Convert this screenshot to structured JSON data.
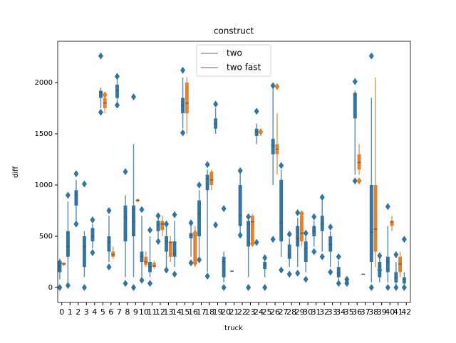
{
  "chart_data": {
    "type": "boxen",
    "title": "construct",
    "x_label": "truck",
    "y_label": "diff",
    "categories": [
      "0",
      "1",
      "2",
      "3",
      "4",
      "5",
      "6",
      "7",
      "8",
      "9",
      "10",
      "11",
      "12",
      "13",
      "14",
      "15",
      "16",
      "17",
      "18",
      "19",
      "20",
      "21",
      "22",
      "23",
      "24",
      "25",
      "26",
      "27",
      "28",
      "29",
      "30",
      "31",
      "32",
      "33",
      "34",
      "35",
      "36",
      "37",
      "38",
      "39",
      "40",
      "41",
      "42"
    ],
    "ylim": [
      -146,
      2403
    ],
    "yticks": [
      0,
      500,
      1000,
      1500,
      2000
    ],
    "legend": "upper center",
    "series": [
      {
        "name": "two",
        "color": "#3274a1",
        "values": [
          {
            "low": 80,
            "q1": 150,
            "median": 210,
            "q3": 260,
            "high": 280,
            "outliers": [
              0,
              240
            ]
          },
          {
            "low": 50,
            "q1": 300,
            "median": 400,
            "q3": 550,
            "high": 840,
            "outliers": [
              900,
              20
            ]
          },
          {
            "low": 650,
            "q1": 800,
            "median": 900,
            "q3": 950,
            "high": 1050,
            "outliers": [
              1110,
              620
            ]
          },
          {
            "low": 100,
            "q1": 200,
            "median": 400,
            "q3": 500,
            "high": 550,
            "outliers": [
              1010,
              0
            ]
          },
          {
            "low": 380,
            "q1": 450,
            "median": 500,
            "q3": 580,
            "high": 620,
            "outliers": [
              660,
              340
            ]
          },
          {
            "low": 1750,
            "q1": 1850,
            "median": 1900,
            "q3": 1920,
            "high": 1950,
            "outliers": [
              2260,
              1710
            ]
          },
          {
            "low": 250,
            "q1": 350,
            "median": 440,
            "q3": 500,
            "high": 700,
            "outliers": [
              750,
              200
            ]
          },
          {
            "low": 1800,
            "q1": 1850,
            "median": 1920,
            "q3": 1980,
            "high": 2050,
            "outliers": [
              2060,
              1780
            ]
          },
          {
            "low": 100,
            "q1": 450,
            "median": 680,
            "q3": 800,
            "high": 900,
            "outliers": [
              1130,
              40
            ]
          },
          {
            "low": 100,
            "q1": 500,
            "median": 640,
            "q3": 800,
            "high": 1400,
            "outliers": [
              1860,
              0
            ]
          },
          {
            "low": 100,
            "q1": 250,
            "median": 300,
            "q3": 350,
            "high": 700,
            "outliers": [
              760,
              70
            ]
          },
          {
            "low": 100,
            "q1": 150,
            "median": 200,
            "q3": 250,
            "high": 500,
            "outliers": [
              560,
              40
            ]
          },
          {
            "low": 480,
            "q1": 550,
            "median": 610,
            "q3": 650,
            "high": 700,
            "outliers": [
              700,
              450
            ]
          },
          {
            "low": 200,
            "q1": 350,
            "median": 450,
            "q3": 500,
            "high": 600,
            "outliers": [
              620,
              170
            ]
          },
          {
            "low": 200,
            "q1": 300,
            "median": 330,
            "q3": 450,
            "high": 650,
            "outliers": [
              710,
              130
            ]
          },
          {
            "low": 1550,
            "q1": 1700,
            "median": 1780,
            "q3": 1850,
            "high": 2050,
            "outliers": [
              2120,
              1510
            ]
          },
          {
            "low": 300,
            "q1": 480,
            "median": 510,
            "q3": 530,
            "high": 600,
            "outliers": [
              630,
              240
            ]
          },
          {
            "low": 300,
            "q1": 500,
            "median": 720,
            "q3": 850,
            "high": 950,
            "outliers": [
              1000,
              270
            ]
          },
          {
            "low": 150,
            "q1": 950,
            "median": 1060,
            "q3": 1100,
            "high": 1150,
            "outliers": [
              1200,
              110
            ]
          },
          {
            "low": 1500,
            "q1": 1550,
            "median": 1600,
            "q3": 1650,
            "high": 1750,
            "outliers": [
              1790,
              610
            ]
          },
          {
            "low": 50,
            "q1": 100,
            "median": 250,
            "q3": 300,
            "high": 350,
            "outliers": [
              770,
              0
            ]
          },
          {
            "low": 160,
            "q1": 160,
            "median": 160,
            "q3": 160,
            "high": 160,
            "outliers": []
          },
          {
            "low": 500,
            "q1": 600,
            "median": 700,
            "q3": 1000,
            "high": 1150,
            "outliers": [
              1140,
              510
            ]
          },
          {
            "low": 100,
            "q1": 400,
            "median": 620,
            "q3": 650,
            "high": 700,
            "outliers": [
              690,
              0
            ]
          },
          {
            "low": 1400,
            "q1": 1480,
            "median": 1520,
            "q3": 1550,
            "high": 1600,
            "outliers": [
              1720,
              440
            ]
          },
          {
            "low": 100,
            "q1": 180,
            "median": 220,
            "q3": 250,
            "high": 280,
            "outliers": [
              290,
              0
            ]
          },
          {
            "low": 1000,
            "q1": 1300,
            "median": 1380,
            "q3": 1450,
            "high": 1950,
            "outliers": [
              1970,
              470
            ]
          },
          {
            "low": 300,
            "q1": 450,
            "median": 630,
            "q3": 1050,
            "high": 1150,
            "outliers": [
              1190,
              170
            ]
          },
          {
            "low": 200,
            "q1": 280,
            "median": 320,
            "q3": 420,
            "high": 480,
            "outliers": [
              520,
              130
            ]
          },
          {
            "low": 200,
            "q1": 400,
            "median": 480,
            "q3": 600,
            "high": 680,
            "outliers": [
              730,
              140
            ]
          },
          {
            "low": 150,
            "q1": 250,
            "median": 380,
            "q3": 450,
            "high": 500,
            "outliers": [
              530,
              80
            ]
          },
          {
            "low": 400,
            "q1": 500,
            "median": 550,
            "q3": 600,
            "high": 650,
            "outliers": [
              690,
              350
            ]
          },
          {
            "low": 350,
            "q1": 550,
            "median": 620,
            "q3": 700,
            "high": 850,
            "outliers": [
              880,
              300
            ]
          },
          {
            "low": 200,
            "q1": 350,
            "median": 420,
            "q3": 500,
            "high": 550,
            "outliers": [
              590,
              150
            ]
          },
          {
            "low": 60,
            "q1": 100,
            "median": 140,
            "q3": 200,
            "high": 260,
            "outliers": [
              300,
              40
            ]
          },
          {
            "low": 20,
            "q1": 40,
            "median": 60,
            "q3": 80,
            "high": 100,
            "outliers": [
              80,
              40
            ]
          },
          {
            "low": 1100,
            "q1": 1650,
            "median": 1880,
            "q3": 1900,
            "high": 1920,
            "outliers": [
              2010,
              1040
            ]
          },
          {
            "low": 130,
            "q1": 130,
            "median": 130,
            "q3": 130,
            "high": 130,
            "outliers": []
          },
          {
            "low": 50,
            "q1": 250,
            "median": 540,
            "q3": 1000,
            "high": 1850,
            "outliers": [
              2260,
              0
            ]
          },
          {
            "low": 50,
            "q1": 100,
            "median": 200,
            "q3": 250,
            "high": 300,
            "outliers": [
              310,
              170
            ]
          },
          {
            "low": 50,
            "q1": 150,
            "median": 250,
            "q3": 300,
            "high": 600,
            "outliers": [
              790,
              0
            ]
          },
          {
            "low": 0,
            "q1": 50,
            "median": 100,
            "q3": 150,
            "high": 250,
            "outliers": [
              320,
              0
            ]
          },
          {
            "low": 20,
            "q1": 40,
            "median": 80,
            "q3": 100,
            "high": 150,
            "outliers": [
              470,
              0
            ]
          }
        ]
      },
      {
        "name": "two fast",
        "color": "#e1812c",
        "values": [
          {
            "low": 210,
            "q1": 220,
            "median": 230,
            "q3": 240,
            "high": 250,
            "outliers": []
          },
          null,
          null,
          null,
          null,
          {
            "low": 1700,
            "q1": 1750,
            "median": 1800,
            "q3": 1850,
            "high": 1900,
            "outliers": [
              1880
            ]
          },
          {
            "low": 280,
            "q1": 300,
            "median": 320,
            "q3": 350,
            "high": 400,
            "outliers": []
          },
          null,
          null,
          {
            "low": 830,
            "q1": 840,
            "median": 850,
            "q3": 860,
            "high": 870,
            "outliers": []
          },
          {
            "low": 200,
            "q1": 220,
            "median": 250,
            "q3": 300,
            "high": 350,
            "outliers": []
          },
          {
            "low": 180,
            "q1": 200,
            "median": 210,
            "q3": 240,
            "high": 260,
            "outliers": []
          },
          {
            "low": 500,
            "q1": 560,
            "median": 620,
            "q3": 650,
            "high": 700,
            "outliers": []
          },
          {
            "low": 250,
            "q1": 300,
            "median": 440,
            "q3": 450,
            "high": 500,
            "outliers": []
          },
          null,
          {
            "low": 1500,
            "q1": 1700,
            "median": 1800,
            "q3": 2000,
            "high": 2050,
            "outliers": []
          },
          {
            "low": 200,
            "q1": 250,
            "median": 510,
            "q3": 540,
            "high": 600,
            "outliers": [
              240,
              530
            ]
          },
          null,
          {
            "low": 950,
            "q1": 1000,
            "median": 1050,
            "q3": 1130,
            "high": 1150,
            "outliers": []
          },
          null,
          null,
          null,
          null,
          {
            "low": 400,
            "q1": 450,
            "median": 640,
            "q3": 700,
            "high": 720,
            "outliers": [
              430
            ]
          },
          {
            "low": 1480,
            "q1": 1500,
            "median": 1520,
            "q3": 1530,
            "high": 1540,
            "outliers": [
              1520
            ]
          },
          null,
          {
            "low": 1100,
            "q1": 1300,
            "median": 1350,
            "q3": 1400,
            "high": 1700,
            "outliers": [
              1960
            ]
          },
          null,
          null,
          {
            "low": 400,
            "q1": 450,
            "median": 530,
            "q3": 700,
            "high": 750,
            "outliers": [
              720
            ]
          },
          null,
          null,
          null,
          null,
          null,
          null,
          {
            "low": 1100,
            "q1": 1150,
            "median": 1220,
            "q3": 1300,
            "high": 1400,
            "outliers": [
              1040
            ]
          },
          null,
          {
            "low": 200,
            "q1": 350,
            "median": 570,
            "q3": 1000,
            "high": 2050,
            "outliers": []
          },
          null,
          {
            "low": 550,
            "q1": 600,
            "median": 640,
            "q3": 650,
            "high": 700,
            "outliers": []
          },
          {
            "low": 100,
            "q1": 150,
            "median": 230,
            "q3": 300,
            "high": 350,
            "outliers": []
          },
          null
        ]
      }
    ]
  }
}
